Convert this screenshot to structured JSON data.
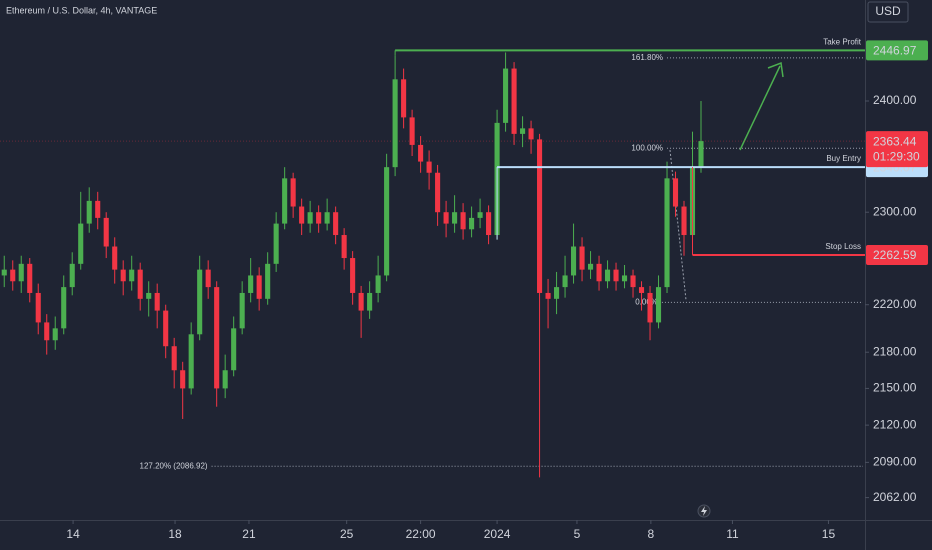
{
  "chart_data": {
    "type": "candlestick",
    "title": "Ethereum / U.S. Dollar, 4h, VANTAGE",
    "currency": "USD",
    "up_color": "#4caf50",
    "down_color": "#f23645",
    "log_scale": true,
    "grid": false,
    "xlim": [
      -0.5,
      101.3
    ],
    "xticks": [
      {
        "value": 8.1,
        "label": "14"
      },
      {
        "value": 20.1,
        "label": "18"
      },
      {
        "value": 28.8,
        "label": "21"
      },
      {
        "value": 40.3,
        "label": "25"
      },
      {
        "value": 49.0,
        "label": "22:00"
      },
      {
        "value": 58.0,
        "label": "2024"
      },
      {
        "value": 67.4,
        "label": "5"
      },
      {
        "value": 76.1,
        "label": "8"
      },
      {
        "value": 85.7,
        "label": "11"
      },
      {
        "value": 97.0,
        "label": "15"
      }
    ],
    "ylim": [
      2044.4,
      2494.6
    ],
    "yticks": [
      {
        "value": 2062,
        "label": "2062.00"
      },
      {
        "value": 2090,
        "label": "2090.00"
      },
      {
        "value": 2120,
        "label": "2120.00"
      },
      {
        "value": 2150,
        "label": "2150.00"
      },
      {
        "value": 2180,
        "label": "2180.00"
      },
      {
        "value": 2220,
        "label": "2220.00"
      },
      {
        "value": 2300,
        "label": "2300.00"
      },
      {
        "value": 2400,
        "label": "2400.00"
      }
    ],
    "open": [
      2245,
      2250,
      2240,
      2255,
      2230,
      2205,
      2190,
      2200,
      2235,
      2255,
      2290,
      2310,
      2295,
      2270,
      2250,
      2240,
      2250,
      2225,
      2230,
      2215,
      2185,
      2165,
      2150,
      2195,
      2250,
      2235,
      2150,
      2165,
      2200,
      2230,
      2245,
      2225,
      2255,
      2290,
      2330,
      2305,
      2290,
      2300,
      2290,
      2300,
      2280,
      2260,
      2230,
      2215,
      2230,
      2245,
      2340,
      2420,
      2385,
      2360,
      2345,
      2335,
      2300,
      2290,
      2300,
      2285,
      2295,
      2300,
      2280,
      2380,
      2430,
      2370,
      2375,
      2365,
      2230,
      2225,
      2235,
      2245,
      2270,
      2250,
      2255,
      2240,
      2250,
      2240,
      2245,
      2235,
      2230,
      2205,
      2235,
      2330,
      2305,
      2280,
      2340
    ],
    "high": [
      2262,
      2258,
      2262,
      2260,
      2238,
      2212,
      2210,
      2245,
      2265,
      2318,
      2322,
      2318,
      2300,
      2278,
      2258,
      2262,
      2256,
      2240,
      2238,
      2220,
      2192,
      2172,
      2205,
      2262,
      2258,
      2240,
      2178,
      2210,
      2240,
      2260,
      2252,
      2265,
      2300,
      2340,
      2335,
      2312,
      2310,
      2306,
      2312,
      2305,
      2286,
      2266,
      2236,
      2240,
      2262,
      2352,
      2442,
      2430,
      2392,
      2368,
      2355,
      2342,
      2310,
      2315,
      2308,
      2305,
      2312,
      2306,
      2392,
      2445,
      2436,
      2386,
      2382,
      2370,
      2242,
      2248,
      2262,
      2290,
      2278,
      2266,
      2262,
      2258,
      2256,
      2254,
      2250,
      2240,
      2236,
      2245,
      2345,
      2336,
      2310,
      2372,
      2400
    ],
    "low": [
      2235,
      2232,
      2230,
      2222,
      2195,
      2178,
      2182,
      2195,
      2228,
      2250,
      2282,
      2285,
      2260,
      2238,
      2228,
      2232,
      2215,
      2210,
      2200,
      2175,
      2150,
      2125,
      2145,
      2190,
      2225,
      2135,
      2142,
      2160,
      2195,
      2222,
      2215,
      2220,
      2248,
      2285,
      2295,
      2280,
      2282,
      2282,
      2284,
      2272,
      2250,
      2220,
      2192,
      2208,
      2222,
      2240,
      2332,
      2375,
      2350,
      2335,
      2320,
      2288,
      2278,
      2282,
      2276,
      2278,
      2286,
      2272,
      2276,
      2372,
      2360,
      2358,
      2352,
      2078,
      2200,
      2212,
      2226,
      2238,
      2240,
      2242,
      2232,
      2234,
      2232,
      2234,
      2226,
      2215,
      2190,
      2200,
      2230,
      2296,
      2262,
      2275,
      2335
    ],
    "close": [
      2250,
      2240,
      2255,
      2230,
      2205,
      2190,
      2200,
      2235,
      2255,
      2290,
      2310,
      2295,
      2270,
      2250,
      2240,
      2250,
      2225,
      2230,
      2215,
      2185,
      2165,
      2150,
      2195,
      2250,
      2235,
      2150,
      2165,
      2200,
      2230,
      2245,
      2225,
      2255,
      2290,
      2330,
      2305,
      2290,
      2300,
      2290,
      2300,
      2280,
      2260,
      2230,
      2215,
      2230,
      2245,
      2340,
      2420,
      2385,
      2360,
      2345,
      2335,
      2300,
      2290,
      2300,
      2285,
      2295,
      2300,
      2280,
      2380,
      2430,
      2370,
      2375,
      2365,
      2230,
      2225,
      2235,
      2245,
      2270,
      2250,
      2255,
      2240,
      2250,
      2240,
      2245,
      2235,
      2230,
      2205,
      2235,
      2330,
      2305,
      2280,
      2340,
      2363.44
    ],
    "levels": [
      {
        "name": "Take Profit",
        "value": 2446.97,
        "from": 46,
        "color": "#4caf50"
      },
      {
        "name": "Buy Entry",
        "value": 2340.07,
        "from": 58,
        "color": "#bbdefb"
      },
      {
        "name": "Stop Loss",
        "value": 2262.59,
        "from": 81,
        "color": "#f23645"
      }
    ],
    "fib_levels": [
      {
        "label": "161.80%",
        "value": 2440,
        "from": 78
      },
      {
        "label": "100.00%",
        "value": 2357,
        "from": 78
      },
      {
        "label": "0.00%",
        "value": 2222,
        "from": 77.4
      },
      {
        "label": "127.20% (2086.92)",
        "value": 2086.92,
        "from": 24.4
      }
    ],
    "last_price": 2363.44,
    "countdown": "01:29:30"
  }
}
